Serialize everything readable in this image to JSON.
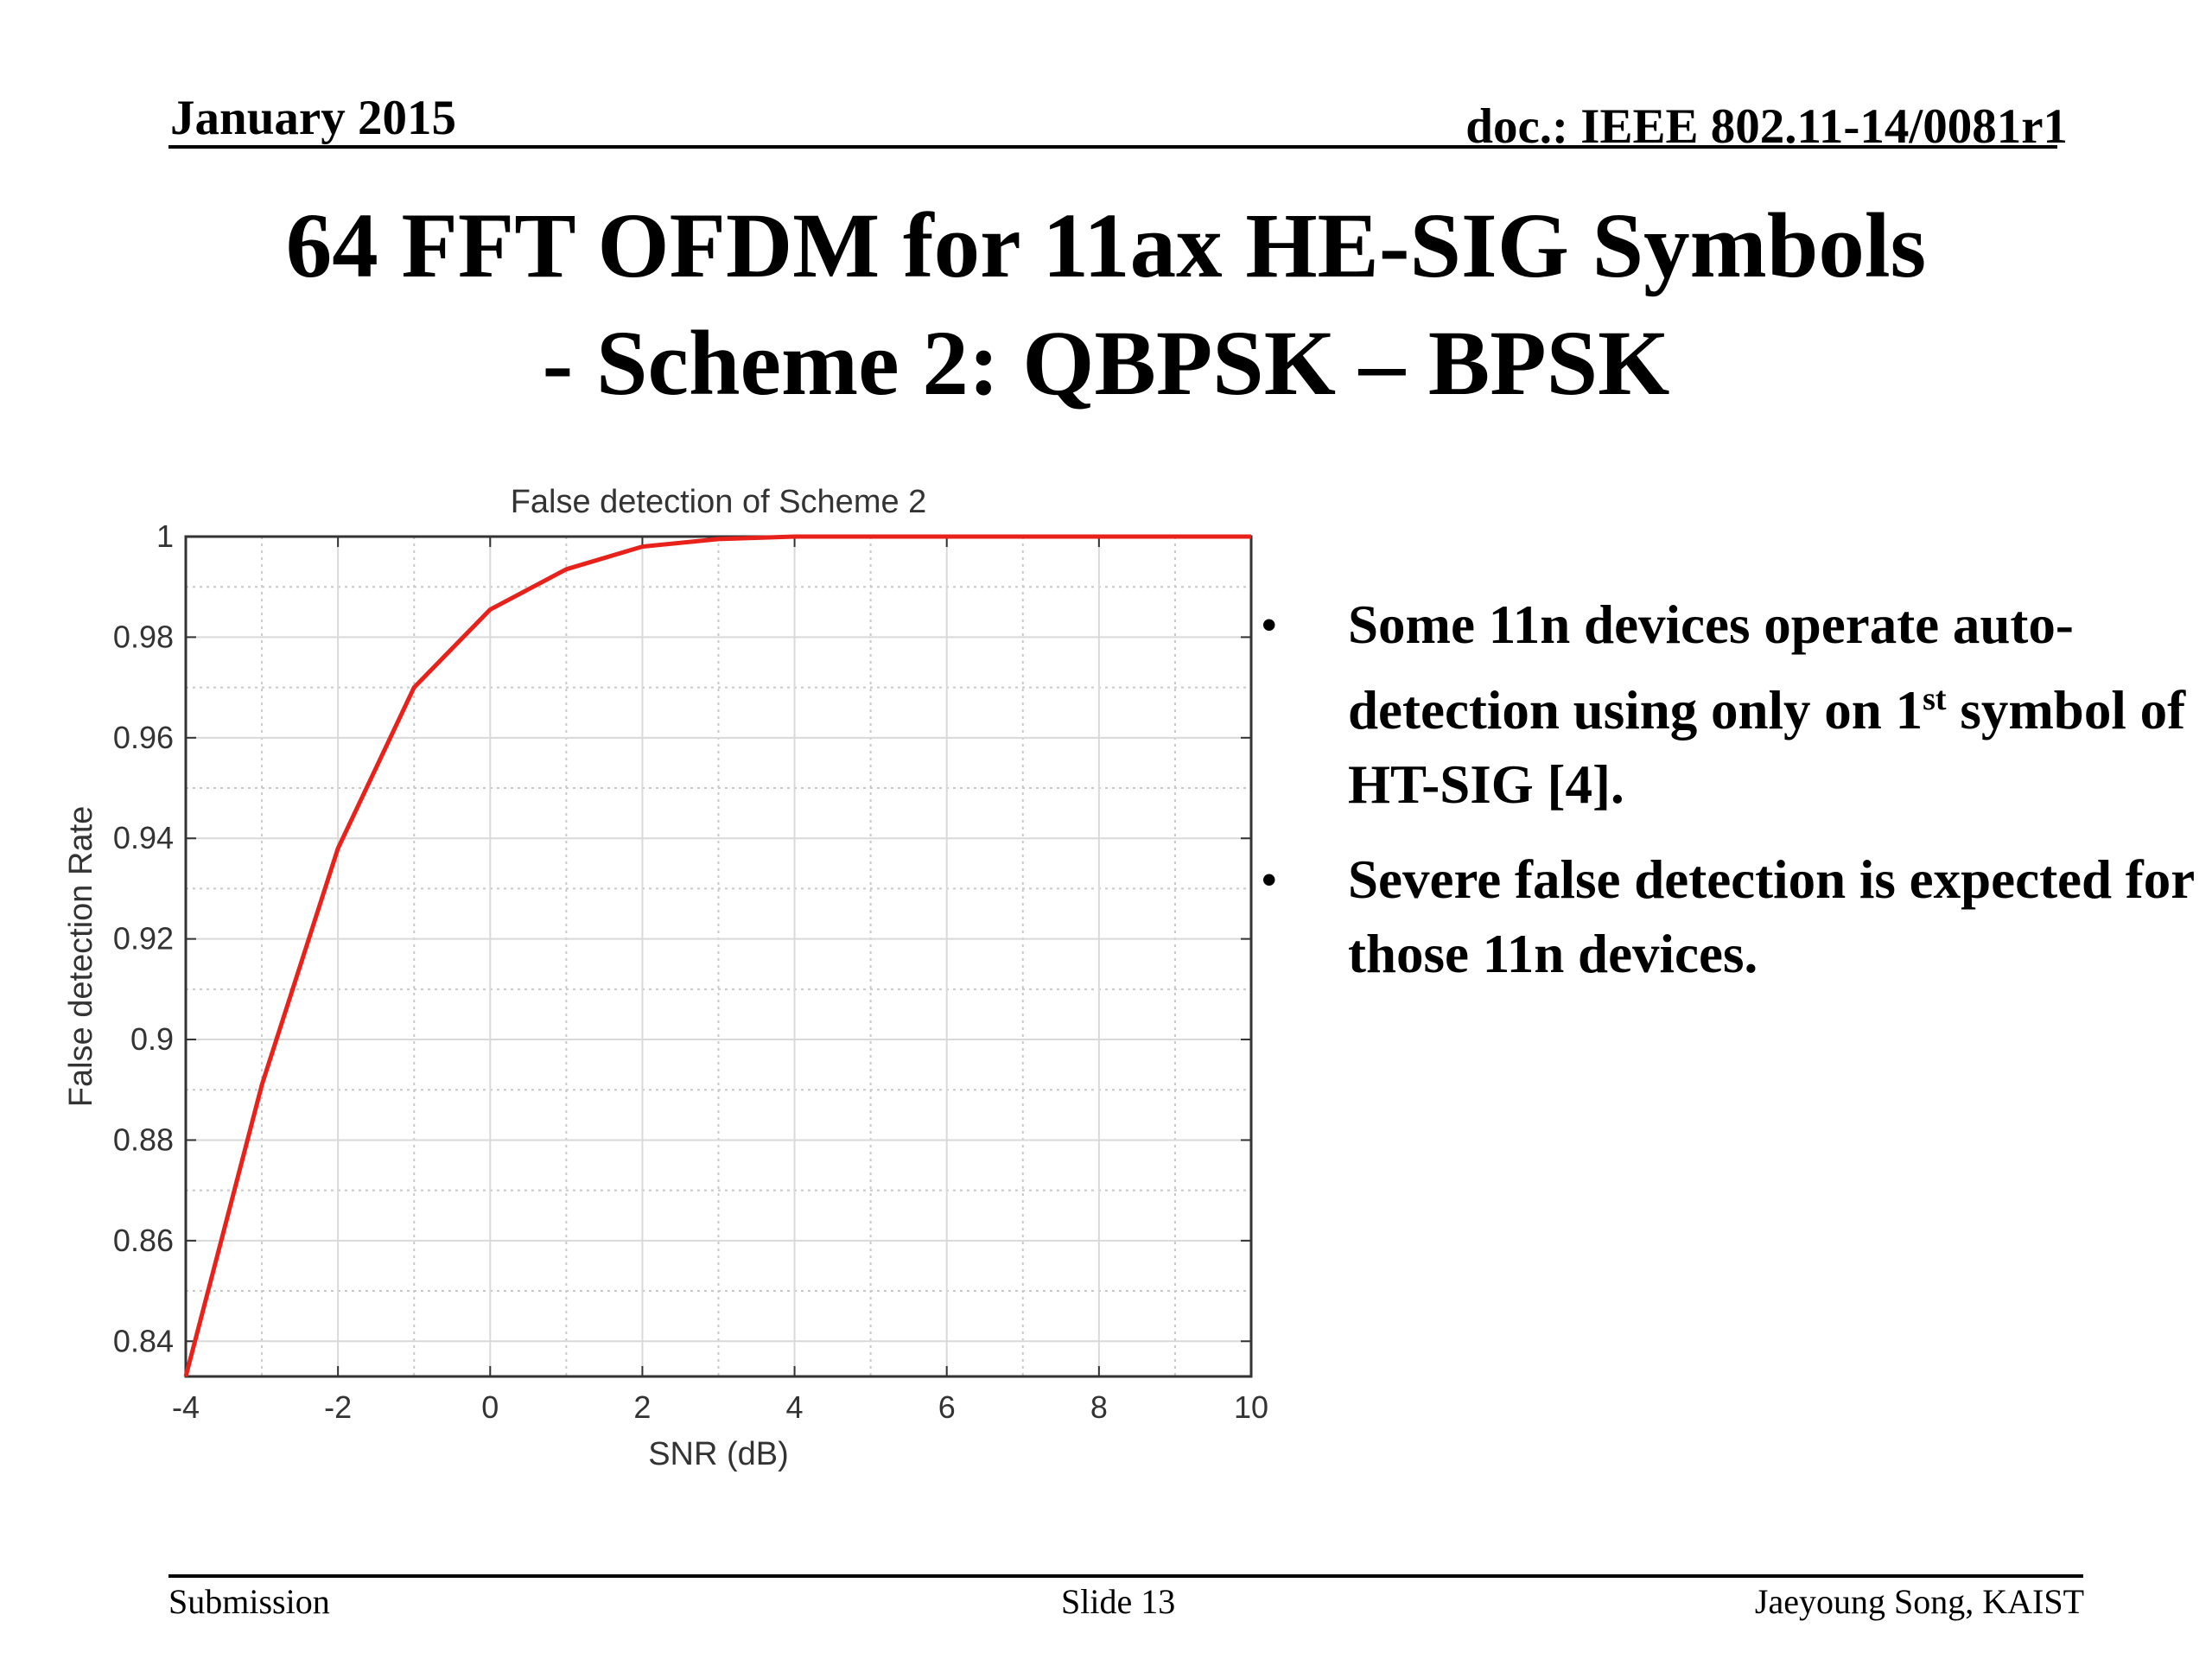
{
  "header": {
    "date": "January 2015",
    "doc": "doc.: IEEE 802.11-14/0081r1"
  },
  "slide_title": {
    "line1": "64 FFT OFDM for 11ax HE-SIG Symbols",
    "line2": "- Scheme 2: QBPSK – BPSK"
  },
  "bullets": [
    {
      "prefix": "Some 11n devices operate  auto-detection using only on 1",
      "sup": "st",
      "suffix": " symbol of HT-SIG [4]."
    },
    {
      "prefix": "Severe false detection is expected for those 11n devices.",
      "sup": "",
      "suffix": ""
    }
  ],
  "bullet_glyph": "•",
  "footer": {
    "left": "Submission",
    "center": "Slide 13",
    "right": "Jaeyoung Song, KAIST"
  },
  "chart_data": {
    "type": "line",
    "title": "False detection of Scheme 2",
    "xlabel": "SNR (dB)",
    "ylabel": "False detection Rate",
    "xlim": [
      -4,
      10
    ],
    "ylim": [
      0.833,
      1
    ],
    "xticks": [
      -4,
      -2,
      0,
      2,
      4,
      6,
      8,
      10
    ],
    "xtick_labels": [
      "-4",
      "-2",
      "0",
      "2",
      "4",
      "6",
      "8",
      "10"
    ],
    "yticks": [
      0.84,
      0.86,
      0.88,
      0.9,
      0.92,
      0.94,
      0.96,
      0.98,
      1
    ],
    "ytick_labels": [
      "0.84",
      "0.86",
      "0.88",
      "0.9",
      "0.92",
      "0.94",
      "0.96",
      "0.98",
      "1"
    ],
    "grid": true,
    "minor_grid": true,
    "series": [
      {
        "color": "#e8211b",
        "x": [
          -4,
          -3,
          -2,
          -1,
          0,
          1,
          2,
          3,
          4,
          5,
          6,
          7,
          8,
          9,
          10
        ],
        "y": [
          0.833,
          0.891,
          0.938,
          0.97,
          0.9855,
          0.9935,
          0.998,
          0.9995,
          1,
          1,
          1,
          1,
          1,
          1,
          1
        ]
      }
    ]
  }
}
